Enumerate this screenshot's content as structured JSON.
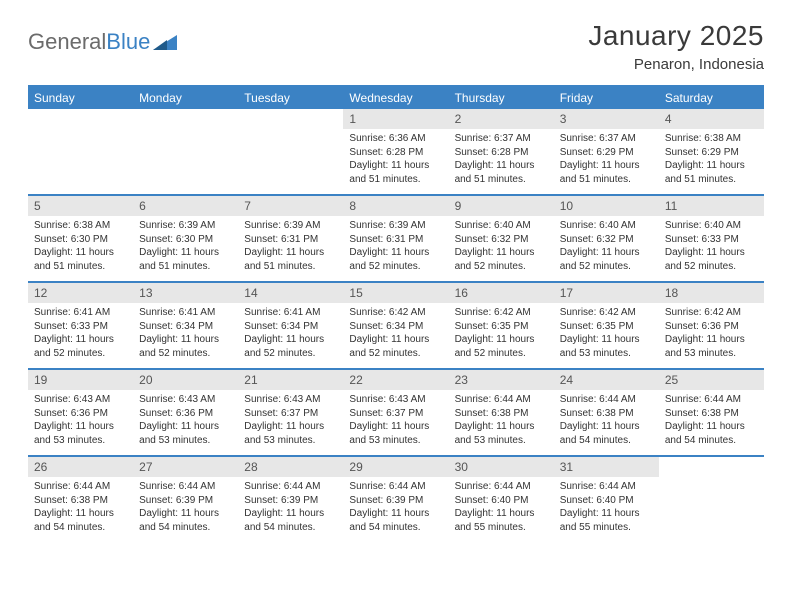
{
  "logo": {
    "text_gray": "General",
    "text_blue": "Blue"
  },
  "title": "January 2025",
  "location": "Penaron, Indonesia",
  "colors": {
    "header_bg": "#3b82c4",
    "header_text": "#ffffff",
    "daynum_bg": "#e7e7e7",
    "border": "#3b82c4",
    "logo_gray": "#6b6b6b",
    "logo_blue": "#3b82c4"
  },
  "day_headers": [
    "Sunday",
    "Monday",
    "Tuesday",
    "Wednesday",
    "Thursday",
    "Friday",
    "Saturday"
  ],
  "weeks": [
    [
      {
        "n": "",
        "sr": "",
        "ss": "",
        "dl": ""
      },
      {
        "n": "",
        "sr": "",
        "ss": "",
        "dl": ""
      },
      {
        "n": "",
        "sr": "",
        "ss": "",
        "dl": ""
      },
      {
        "n": "1",
        "sr": "6:36 AM",
        "ss": "6:28 PM",
        "dl": "11 hours and 51 minutes."
      },
      {
        "n": "2",
        "sr": "6:37 AM",
        "ss": "6:28 PM",
        "dl": "11 hours and 51 minutes."
      },
      {
        "n": "3",
        "sr": "6:37 AM",
        "ss": "6:29 PM",
        "dl": "11 hours and 51 minutes."
      },
      {
        "n": "4",
        "sr": "6:38 AM",
        "ss": "6:29 PM",
        "dl": "11 hours and 51 minutes."
      }
    ],
    [
      {
        "n": "5",
        "sr": "6:38 AM",
        "ss": "6:30 PM",
        "dl": "11 hours and 51 minutes."
      },
      {
        "n": "6",
        "sr": "6:39 AM",
        "ss": "6:30 PM",
        "dl": "11 hours and 51 minutes."
      },
      {
        "n": "7",
        "sr": "6:39 AM",
        "ss": "6:31 PM",
        "dl": "11 hours and 51 minutes."
      },
      {
        "n": "8",
        "sr": "6:39 AM",
        "ss": "6:31 PM",
        "dl": "11 hours and 52 minutes."
      },
      {
        "n": "9",
        "sr": "6:40 AM",
        "ss": "6:32 PM",
        "dl": "11 hours and 52 minutes."
      },
      {
        "n": "10",
        "sr": "6:40 AM",
        "ss": "6:32 PM",
        "dl": "11 hours and 52 minutes."
      },
      {
        "n": "11",
        "sr": "6:40 AM",
        "ss": "6:33 PM",
        "dl": "11 hours and 52 minutes."
      }
    ],
    [
      {
        "n": "12",
        "sr": "6:41 AM",
        "ss": "6:33 PM",
        "dl": "11 hours and 52 minutes."
      },
      {
        "n": "13",
        "sr": "6:41 AM",
        "ss": "6:34 PM",
        "dl": "11 hours and 52 minutes."
      },
      {
        "n": "14",
        "sr": "6:41 AM",
        "ss": "6:34 PM",
        "dl": "11 hours and 52 minutes."
      },
      {
        "n": "15",
        "sr": "6:42 AM",
        "ss": "6:34 PM",
        "dl": "11 hours and 52 minutes."
      },
      {
        "n": "16",
        "sr": "6:42 AM",
        "ss": "6:35 PM",
        "dl": "11 hours and 52 minutes."
      },
      {
        "n": "17",
        "sr": "6:42 AM",
        "ss": "6:35 PM",
        "dl": "11 hours and 53 minutes."
      },
      {
        "n": "18",
        "sr": "6:42 AM",
        "ss": "6:36 PM",
        "dl": "11 hours and 53 minutes."
      }
    ],
    [
      {
        "n": "19",
        "sr": "6:43 AM",
        "ss": "6:36 PM",
        "dl": "11 hours and 53 minutes."
      },
      {
        "n": "20",
        "sr": "6:43 AM",
        "ss": "6:36 PM",
        "dl": "11 hours and 53 minutes."
      },
      {
        "n": "21",
        "sr": "6:43 AM",
        "ss": "6:37 PM",
        "dl": "11 hours and 53 minutes."
      },
      {
        "n": "22",
        "sr": "6:43 AM",
        "ss": "6:37 PM",
        "dl": "11 hours and 53 minutes."
      },
      {
        "n": "23",
        "sr": "6:44 AM",
        "ss": "6:38 PM",
        "dl": "11 hours and 53 minutes."
      },
      {
        "n": "24",
        "sr": "6:44 AM",
        "ss": "6:38 PM",
        "dl": "11 hours and 54 minutes."
      },
      {
        "n": "25",
        "sr": "6:44 AM",
        "ss": "6:38 PM",
        "dl": "11 hours and 54 minutes."
      }
    ],
    [
      {
        "n": "26",
        "sr": "6:44 AM",
        "ss": "6:38 PM",
        "dl": "11 hours and 54 minutes."
      },
      {
        "n": "27",
        "sr": "6:44 AM",
        "ss": "6:39 PM",
        "dl": "11 hours and 54 minutes."
      },
      {
        "n": "28",
        "sr": "6:44 AM",
        "ss": "6:39 PM",
        "dl": "11 hours and 54 minutes."
      },
      {
        "n": "29",
        "sr": "6:44 AM",
        "ss": "6:39 PM",
        "dl": "11 hours and 54 minutes."
      },
      {
        "n": "30",
        "sr": "6:44 AM",
        "ss": "6:40 PM",
        "dl": "11 hours and 55 minutes."
      },
      {
        "n": "31",
        "sr": "6:44 AM",
        "ss": "6:40 PM",
        "dl": "11 hours and 55 minutes."
      },
      {
        "n": "",
        "sr": "",
        "ss": "",
        "dl": ""
      }
    ]
  ],
  "labels": {
    "sunrise": "Sunrise:",
    "sunset": "Sunset:",
    "daylight": "Daylight:"
  }
}
